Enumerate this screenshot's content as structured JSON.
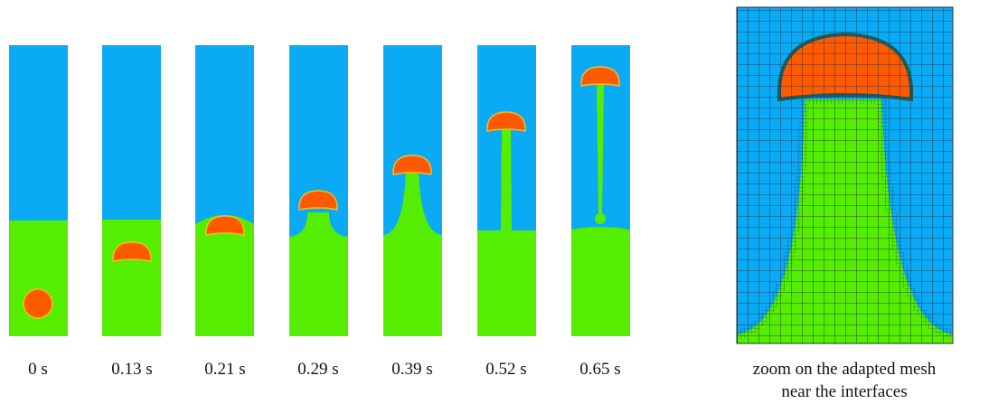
{
  "panels": [
    {
      "label": "0 s"
    },
    {
      "label": "0.13 s"
    },
    {
      "label": "0.21 s"
    },
    {
      "label": "0.29 s"
    },
    {
      "label": "0.39 s"
    },
    {
      "label": "0.52 s"
    },
    {
      "label": "0.65 s"
    }
  ],
  "zoom": {
    "caption": [
      "zoom on the adapted mesh",
      "near the interfaces"
    ]
  }
}
